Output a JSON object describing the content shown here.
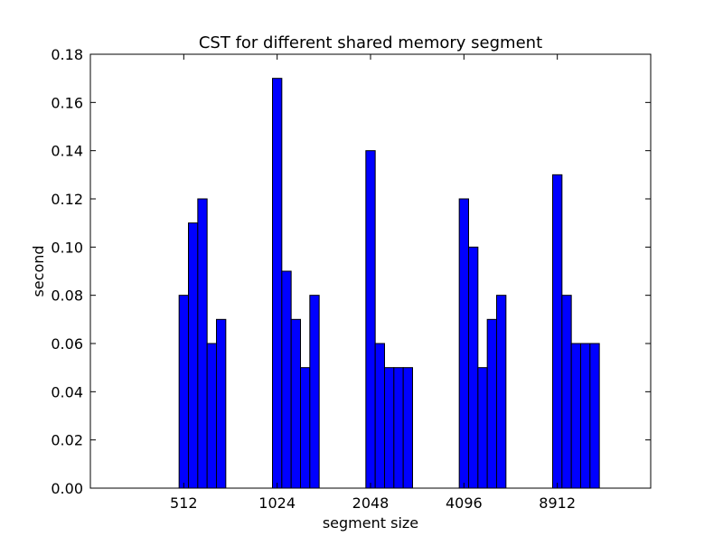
{
  "chart_data": {
    "type": "bar",
    "title": "CST for different shared memory segment",
    "xlabel": "segment size",
    "ylabel": "second",
    "categories": [
      "512",
      "1024",
      "2048",
      "4096",
      "8912"
    ],
    "bars_per_group": 5,
    "values": [
      [
        0.08,
        0.11,
        0.12,
        0.06,
        0.07
      ],
      [
        0.17,
        0.09,
        0.07,
        0.05,
        0.08
      ],
      [
        0.14,
        0.06,
        0.05,
        0.05,
        0.05
      ],
      [
        0.12,
        0.1,
        0.05,
        0.07,
        0.08
      ],
      [
        0.13,
        0.08,
        0.06,
        0.06,
        0.06
      ]
    ],
    "ylim": [
      0,
      0.18
    ],
    "yticks": [
      "0.00",
      "0.02",
      "0.04",
      "0.06",
      "0.08",
      "0.10",
      "0.12",
      "0.14",
      "0.16",
      "0.18"
    ],
    "grid": false,
    "colors": {
      "bar_fill": "#0000ff",
      "bar_edge": "#000000",
      "axes": "#000000",
      "background": "#ffffff"
    }
  }
}
